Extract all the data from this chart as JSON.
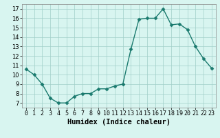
{
  "x": [
    0,
    1,
    2,
    3,
    4,
    5,
    6,
    7,
    8,
    9,
    10,
    11,
    12,
    13,
    14,
    15,
    16,
    17,
    18,
    19,
    20,
    21,
    22,
    23
  ],
  "y": [
    10.6,
    10.0,
    9.0,
    7.5,
    7.0,
    7.0,
    7.7,
    8.0,
    8.0,
    8.5,
    8.5,
    8.8,
    9.0,
    12.7,
    15.9,
    16.0,
    16.0,
    17.0,
    15.3,
    15.4,
    14.8,
    13.0,
    11.7,
    10.7
  ],
  "line_color": "#1a7a6e",
  "marker_color": "#1a7a6e",
  "bg_color": "#d8f5f0",
  "grid_color": "#a0cfc8",
  "xlabel": "Humidex (Indice chaleur)",
  "xlim": [
    -0.5,
    23.5
  ],
  "ylim": [
    6.5,
    17.5
  ],
  "yticks": [
    7,
    8,
    9,
    10,
    11,
    12,
    13,
    14,
    15,
    16,
    17
  ],
  "xticks": [
    0,
    1,
    2,
    3,
    4,
    5,
    6,
    7,
    8,
    9,
    10,
    11,
    12,
    13,
    14,
    15,
    16,
    17,
    18,
    19,
    20,
    21,
    22,
    23
  ],
  "xtick_labels": [
    "0",
    "1",
    "2",
    "3",
    "4",
    "5",
    "6",
    "7",
    "8",
    "9",
    "10",
    "11",
    "12",
    "13",
    "14",
    "15",
    "16",
    "17",
    "18",
    "19",
    "20",
    "21",
    "22",
    "23"
  ],
  "xlabel_fontsize": 7.5,
  "tick_fontsize": 6.0,
  "line_width": 1.0,
  "marker_size": 2.5
}
